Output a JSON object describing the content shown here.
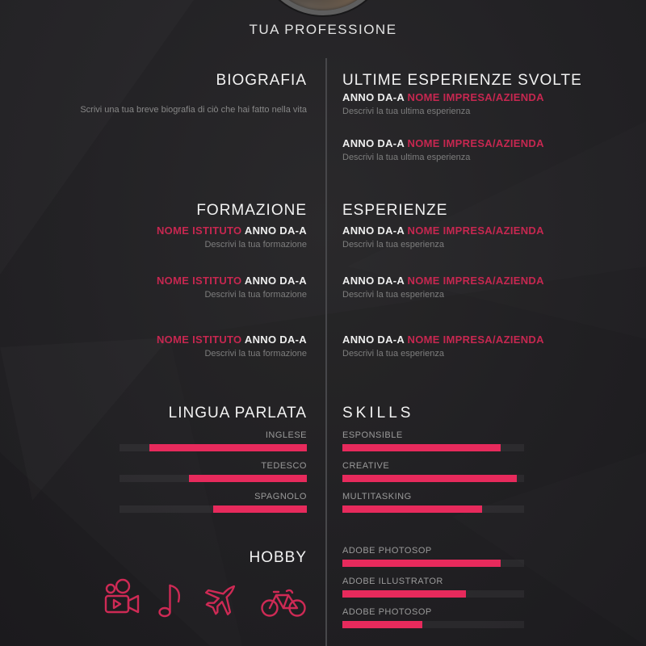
{
  "theme": {
    "accent_text": "#c62750",
    "accent_bar": "#e72a5c",
    "background": "#232225",
    "heading_color": "#f2f2f2",
    "muted_text": "#7d7d7d"
  },
  "header": {
    "profession": "TUA PROFESSIONE"
  },
  "left": {
    "biografia": {
      "title": "BIOGRAFIA",
      "text": "Scrivi una tua breve biografia di ciò che hai fatto nella vita"
    },
    "formazione": {
      "title": "FORMAZIONE",
      "entries": [
        {
          "institute": "NOME ISTITUTO",
          "years": "ANNO DA-A",
          "desc": "Descrivi la tua formazione"
        },
        {
          "institute": "NOME ISTITUTO",
          "years": "ANNO DA-A",
          "desc": "Descrivi la tua formazione"
        },
        {
          "institute": "NOME ISTITUTO",
          "years": "ANNO DA-A",
          "desc": "Descrivi la tua formazione"
        }
      ]
    },
    "lingua": {
      "title": "LINGUA PARLATA",
      "bars": [
        {
          "label": "INGLESE",
          "percent": 84
        },
        {
          "label": "TEDESCO",
          "percent": 63
        },
        {
          "label": "SPAGNOLO",
          "percent": 50
        }
      ]
    },
    "hobby": {
      "title": "HOBBY",
      "icons": [
        "video-camera-icon",
        "music-note-icon",
        "airplane-icon",
        "bicycle-icon"
      ]
    }
  },
  "right": {
    "ultime": {
      "title": "ULTIME ESPERIENZE SVOLTE",
      "entries": [
        {
          "years": "ANNO DA-A",
          "company": "NOME IMPRESA/AZIENDA",
          "desc": "Descrivi la tua ultima esperienza"
        },
        {
          "years": "ANNO DA-A",
          "company": "NOME IMPRESA/AZIENDA",
          "desc": "Descrivi la tua ultima esperienza"
        }
      ]
    },
    "esperienze": {
      "title": "ESPERIENZE",
      "entries": [
        {
          "years": "ANNO DA-A",
          "company": "NOME IMPRESA/AZIENDA",
          "desc": "Descrivi la tua esperienza"
        },
        {
          "years": "ANNO DA-A",
          "company": "NOME IMPRESA/AZIENDA",
          "desc": "Descrivi la tua esperienza"
        },
        {
          "years": "ANNO DA-A",
          "company": "NOME IMPRESA/AZIENDA",
          "desc": "Descrivi la tua esperienza"
        }
      ]
    },
    "skills": {
      "title": "SKILLS",
      "bars": [
        {
          "label": "ESPONSIBLE",
          "percent": 87
        },
        {
          "label": "CREATIVE",
          "percent": 96
        },
        {
          "label": "MULTITASKING",
          "percent": 77
        }
      ]
    },
    "software": {
      "bars": [
        {
          "label": "ADOBE PHOTOSOP",
          "percent": 87
        },
        {
          "label": "ADOBE ILLUSTRATOR",
          "percent": 68
        },
        {
          "label": "ADOBE PHOTOSOP",
          "percent": 44
        }
      ]
    }
  }
}
